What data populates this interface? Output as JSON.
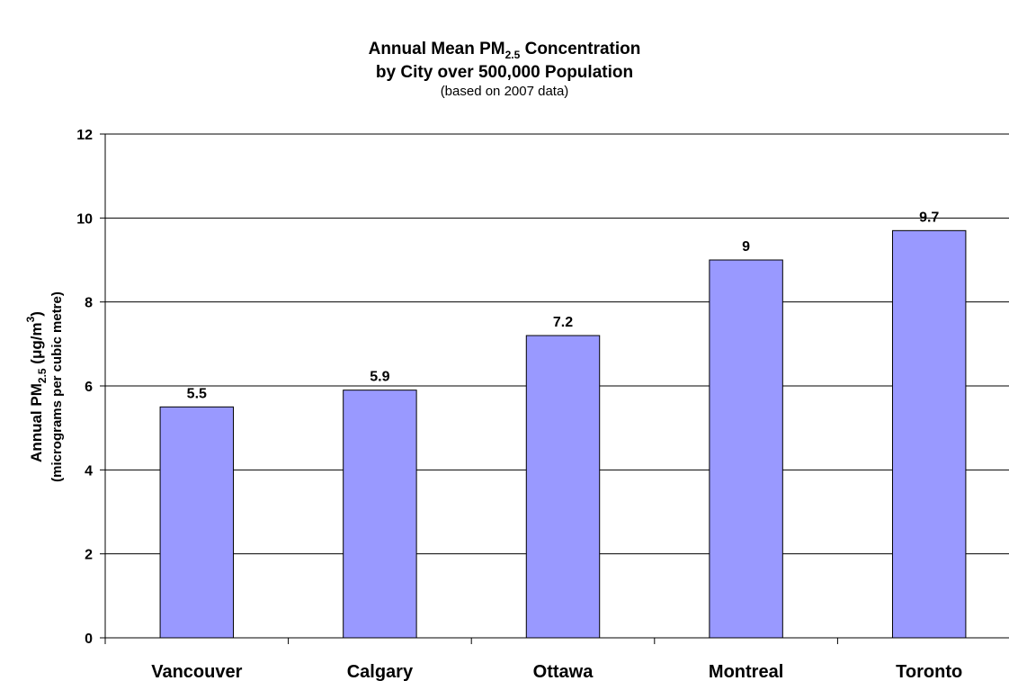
{
  "chart_data": {
    "type": "bar",
    "title": [
      "Annual Mean PM",
      "2.5",
      " Concentration"
    ],
    "title_line2": "by City over 500,000 Population",
    "subtitle": "(based on 2007 data)",
    "y_label": [
      "Annual PM",
      "2.5",
      " (μg/m",
      "3",
      ")"
    ],
    "y_label_line2": "(micrograms per cubic metre)",
    "categories": [
      "Vancouver",
      "Calgary",
      "Ottawa",
      "Montreal",
      "Toronto"
    ],
    "values": [
      5.5,
      5.9,
      7.2,
      9,
      9.7
    ],
    "color": "#9999ff",
    "ylim": [
      0,
      12
    ],
    "yticks": [
      0,
      2,
      4,
      6,
      8,
      10,
      12
    ],
    "grid": true
  }
}
